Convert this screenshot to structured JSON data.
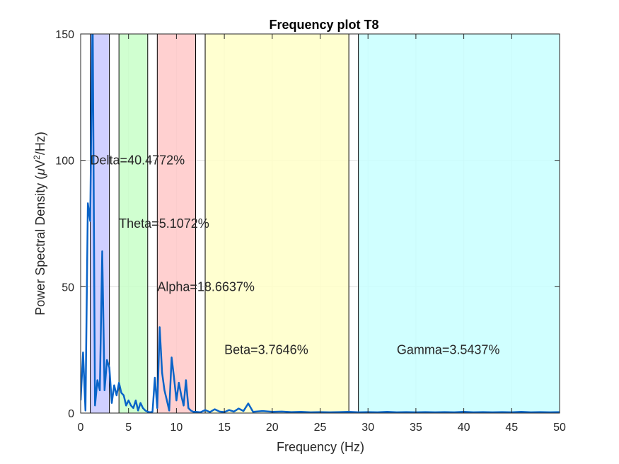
{
  "chart_data": {
    "type": "line",
    "title": "Frequency plot T8",
    "xlabel": "Frequency (Hz)",
    "ylabel_prefix": "Power Spectral Density (",
    "ylabel_mu": "μ",
    "ylabel_unit": "V",
    "ylabel_exp": "2",
    "ylabel_suffix": "/Hz)",
    "xlim": [
      0,
      50
    ],
    "ylim": [
      0,
      150
    ],
    "xticks": [
      0,
      5,
      10,
      15,
      20,
      25,
      30,
      35,
      40,
      45,
      50
    ],
    "yticks": [
      0,
      50,
      100,
      150
    ],
    "grid": true,
    "bands": [
      {
        "name": "Delta",
        "label": "Delta=40.4772%",
        "range": [
          1,
          3
        ],
        "color": "#c8c8ff",
        "label_at": [
          1,
          100
        ]
      },
      {
        "name": "Theta",
        "label": "Theta=5.1072%",
        "range": [
          4,
          7
        ],
        "color": "#c8ffc8",
        "label_at": [
          4,
          75
        ]
      },
      {
        "name": "Alpha",
        "label": "Alpha=18.6637%",
        "range": [
          8,
          12
        ],
        "color": "#ffc8c8",
        "label_at": [
          8,
          50
        ]
      },
      {
        "name": "Beta",
        "label": "Beta=3.7646%",
        "range": [
          13,
          28
        ],
        "color": "#ffffc8",
        "label_at": [
          15,
          25
        ]
      },
      {
        "name": "Gamma",
        "label": "Gamma=3.5437%",
        "range": [
          29,
          50
        ],
        "color": "#c8ffff",
        "label_at": [
          33,
          25
        ]
      }
    ],
    "series": [
      {
        "color": "#0a64c8",
        "x": [
          0,
          0.25,
          0.5,
          0.75,
          1,
          1.25,
          1.5,
          1.75,
          2,
          2.25,
          2.5,
          2.75,
          3,
          3.25,
          3.5,
          3.75,
          4,
          4.25,
          4.5,
          4.75,
          5,
          5.25,
          5.5,
          5.75,
          6,
          6.25,
          6.5,
          6.75,
          7,
          7.25,
          7.5,
          7.75,
          8,
          8.25,
          8.5,
          8.75,
          9,
          9.25,
          9.5,
          9.75,
          10,
          10.25,
          10.5,
          10.75,
          11,
          11.25,
          11.5,
          11.75,
          12,
          12.5,
          13,
          13.5,
          14,
          14.5,
          15,
          15.5,
          16,
          16.5,
          17,
          17.5,
          18,
          19,
          20,
          21,
          22,
          23,
          24,
          25,
          26,
          27,
          28,
          29,
          30,
          31,
          32,
          33,
          34,
          35,
          36,
          37,
          38,
          39,
          40,
          41,
          42,
          43,
          44,
          45,
          46,
          47,
          48,
          49,
          50
        ],
        "y": [
          5,
          24,
          1,
          83,
          76,
          160,
          3,
          13,
          9,
          64,
          9,
          21,
          18,
          4,
          11,
          7,
          12,
          8,
          7,
          3,
          5,
          3,
          2,
          5,
          1,
          4,
          2,
          1,
          0.5,
          0.3,
          0.5,
          14,
          2,
          34,
          16,
          9,
          5,
          1,
          22,
          14,
          5,
          12,
          7,
          3,
          13,
          2,
          1,
          0.5,
          0.5,
          0.3,
          1.2,
          0.4,
          1.5,
          0.6,
          0.4,
          1.2,
          0.6,
          1.8,
          0.8,
          3.8,
          0.5,
          0.8,
          0.5,
          0.6,
          0.4,
          0.5,
          0.3,
          0.4,
          0.3,
          0.4,
          0.5,
          0.3,
          0.4,
          0.3,
          0.5,
          0.3,
          0.4,
          0.3,
          0.4,
          0.3,
          0.4,
          0.3,
          0.5,
          0.3,
          0.4,
          0.3,
          0.4,
          0.3,
          0.5,
          0.3,
          0.4,
          0.3,
          0.4
        ]
      }
    ]
  }
}
